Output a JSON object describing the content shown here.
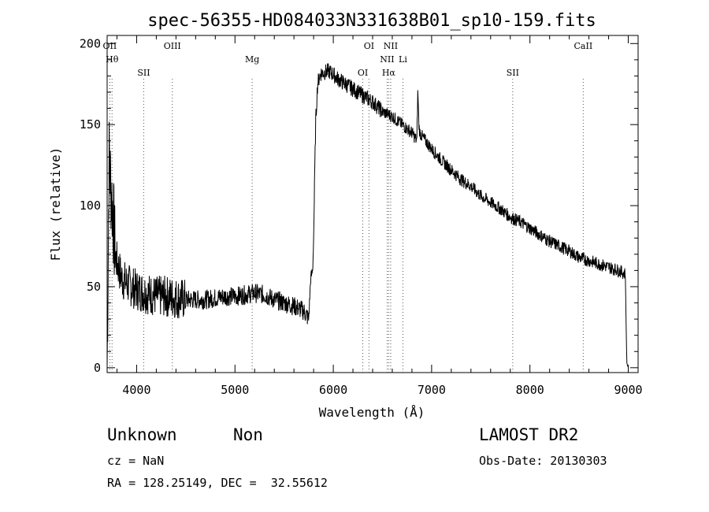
{
  "chart_data": {
    "type": "line",
    "title": "spec-56355-HD084033N331638B01_sp10-159.fits",
    "xlabel": "Wavelength (Å)",
    "ylabel": "Flux (relative)",
    "xlim": [
      3700,
      9100
    ],
    "ylim": [
      -3,
      205
    ],
    "x_ticks": [
      4000,
      5000,
      6000,
      7000,
      8000,
      9000
    ],
    "y_ticks": [
      0,
      50,
      100,
      150,
      200
    ],
    "grid": false,
    "series": [
      {
        "x": [
          3700,
          3720,
          3740,
          3760,
          3780,
          3800,
          3850,
          3900,
          3950,
          4000,
          4100,
          4200,
          4300,
          4400,
          4500,
          4600,
          4700,
          4800,
          4900,
          5000,
          5100,
          5200,
          5300,
          5400,
          5500,
          5600,
          5700,
          5750,
          5770,
          5790,
          5800,
          5820,
          5840,
          5860,
          5880,
          5900,
          5950,
          6000,
          6050,
          6100,
          6200,
          6300,
          6400,
          6500,
          6600,
          6700,
          6800,
          6850,
          6860,
          6870,
          6880,
          6900,
          7000,
          7100,
          7200,
          7300,
          7400,
          7500,
          7600,
          7700,
          7800,
          7900,
          8000,
          8100,
          8200,
          8300,
          8400,
          8500,
          8600,
          8700,
          8800,
          8900,
          8970,
          8985,
          9000
        ],
        "y": [
          0,
          130,
          110,
          95,
          70,
          65,
          55,
          52,
          50,
          48,
          46,
          44,
          44,
          43,
          42,
          42,
          42,
          43,
          44,
          44,
          45,
          46,
          45,
          42,
          40,
          38,
          35,
          30,
          55,
          60,
          80,
          150,
          175,
          180,
          182,
          182,
          183,
          181,
          178,
          176,
          172,
          168,
          164,
          158,
          155,
          150,
          145,
          140,
          172,
          150,
          145,
          143,
          135,
          128,
          122,
          116,
          112,
          106,
          102,
          98,
          93,
          90,
          86,
          82,
          78,
          75,
          72,
          68,
          66,
          64,
          62,
          60,
          58,
          3,
          0
        ]
      }
    ],
    "spectral_lines": [
      {
        "label": "OII",
        "x": 3727
      },
      {
        "label": "Hθ",
        "x": 3750
      },
      {
        "label": "SII",
        "x": 4072
      },
      {
        "label": "OIII",
        "x": 4363
      },
      {
        "label": "Mg",
        "x": 5175
      },
      {
        "label": "OI",
        "x": 6300
      },
      {
        "label": "OI",
        "x": 6363
      },
      {
        "label": "NII",
        "x": 6548
      },
      {
        "label": "Hα",
        "x": 6563
      },
      {
        "label": "NII",
        "x": 6584
      },
      {
        "label": "Li",
        "x": 6708
      },
      {
        "label": "SII",
        "x": 7825
      },
      {
        "label": "CaII",
        "x": 8542
      }
    ]
  },
  "info": {
    "class": "Unknown",
    "subclass": "Non",
    "survey": "LAMOST DR2",
    "cz": "cz = NaN",
    "obs_date": "Obs-Date: 20130303",
    "coords": "RA = 128.25149, DEC =  32.55612"
  }
}
